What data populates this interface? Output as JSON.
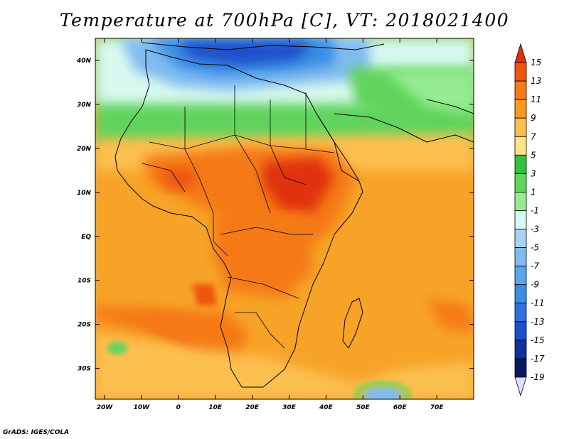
{
  "title": "Temperature at 700hPa [C], VT: 2018021400",
  "credit": "GrADS: IGES/COLA",
  "axes": {
    "lat_labels": [
      {
        "v": 40,
        "t": "40N"
      },
      {
        "v": 30,
        "t": "30N"
      },
      {
        "v": 20,
        "t": "20N"
      },
      {
        "v": 10,
        "t": "10N"
      },
      {
        "v": 0,
        "t": "EQ"
      },
      {
        "v": -10,
        "t": "10S"
      },
      {
        "v": -20,
        "t": "20S"
      },
      {
        "v": -30,
        "t": "30S"
      }
    ],
    "lon_labels": [
      {
        "v": -20,
        "t": "20W"
      },
      {
        "v": -10,
        "t": "10W"
      },
      {
        "v": 0,
        "t": "0"
      },
      {
        "v": 10,
        "t": "10E"
      },
      {
        "v": 20,
        "t": "20E"
      },
      {
        "v": 30,
        "t": "30E"
      },
      {
        "v": 40,
        "t": "40E"
      },
      {
        "v": 50,
        "t": "50E"
      },
      {
        "v": 60,
        "t": "60E"
      },
      {
        "v": 70,
        "t": "70E"
      }
    ],
    "lon_range": [
      -22.5,
      80
    ],
    "lat_range": [
      -37,
      45
    ]
  },
  "colorbar": {
    "levels": [
      "15",
      "13",
      "11",
      "9",
      "7",
      "5",
      "3",
      "1",
      "-1",
      "-3",
      "-5",
      "-7",
      "-9",
      "-11",
      "-13",
      "-15",
      "-17",
      "-19"
    ],
    "colors": [
      "#e0300a",
      "#f05510",
      "#f57a15",
      "#f99a20",
      "#fcc050",
      "#fde585",
      "#34c040",
      "#60d45c",
      "#96ec92",
      "#d8f8f0",
      "#aad2f5",
      "#80bbf0",
      "#5ba5ec",
      "#3a8ee5",
      "#2f71de",
      "#1b4fcb",
      "#103197",
      "#0a1a60",
      "#dedeff"
    ]
  },
  "colors": {
    "background": "#ffffff",
    "map_base": "#f7a328",
    "hot": "#f57a15",
    "hottest": "#e0300a",
    "warm": "#fcc050",
    "green": "#60d45c",
    "cold": "#3a8ee5",
    "coldest": "#1b4fcb"
  }
}
